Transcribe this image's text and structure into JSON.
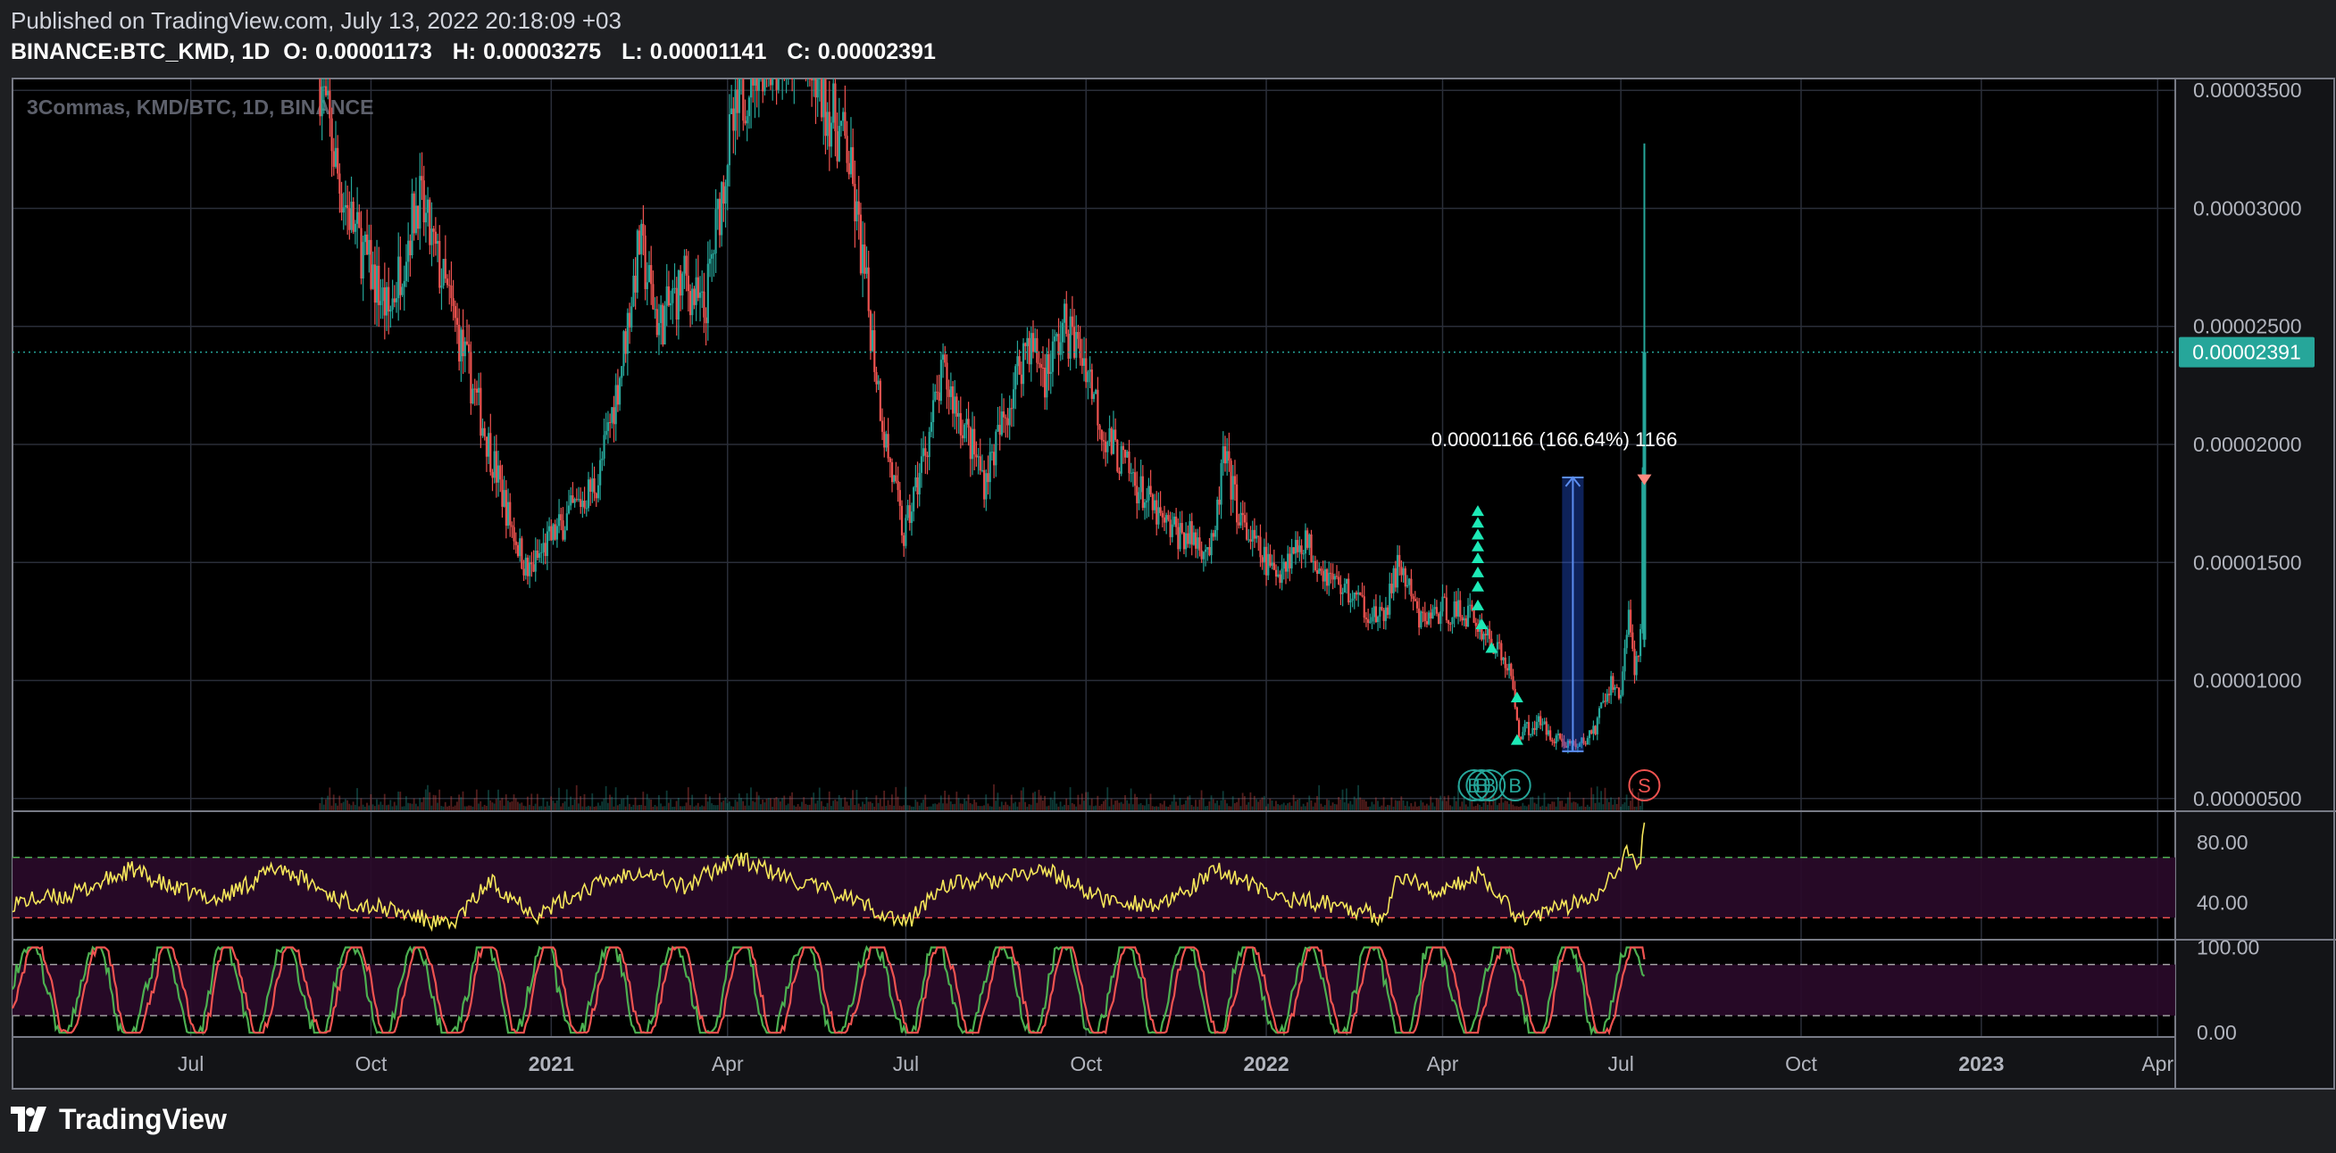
{
  "header": {
    "published": "Published on TradingView.com, July 13, 2022 20:18:09 +03",
    "symbol": "BINANCE:BTC_KMD, 1D",
    "o_label": "O:",
    "o": "0.00001173",
    "h_label": "H:",
    "h": "0.00003275",
    "l_label": "L:",
    "l": "0.00001141",
    "c_label": "C:",
    "c": "0.00002391"
  },
  "footer": {
    "brand": "TradingView"
  },
  "colors": {
    "background": "#000000",
    "up": "#26a69a",
    "down": "#ef5350",
    "grid": "#2a2e39",
    "rsi": "#f5e65a",
    "stoch_k": "#4caf50",
    "stoch_d": "#ef5350",
    "price_label": "#26a69a",
    "marker_up": "#1de9b6",
    "marker_down": "#ff8a80",
    "measure": "#2962ff"
  },
  "chart_data": {
    "type": "candlestick",
    "watermark": "3Commas, KMD/BTC, 1D, BINANCE",
    "y_axis": {
      "range": [
        4.5e-06,
        3.55e-05
      ],
      "ticks": [
        "0.00003500",
        "0.00003000",
        "0.00002500",
        "0.00002000",
        "0.00001500",
        "0.00001000",
        "0.00000500"
      ],
      "tick_values": [
        3.5e-05,
        3e-05,
        2.5e-05,
        2e-05,
        1.5e-05,
        1e-05,
        5e-06
      ]
    },
    "x_axis": {
      "ticks": [
        "Jul",
        "Oct",
        "2021",
        "Apr",
        "Jul",
        "Oct",
        "2022",
        "Apr",
        "Jul",
        "Oct",
        "2023",
        "Apr"
      ],
      "tick_dates": [
        "2020-07-01",
        "2020-10-01",
        "2021-01-01",
        "2021-04-01",
        "2021-07-01",
        "2021-10-01",
        "2022-01-01",
        "2022-04-01",
        "2022-07-01",
        "2022-10-01",
        "2023-01-01",
        "2023-04-01"
      ],
      "range": [
        "2020-04-01",
        "2023-04-10"
      ]
    },
    "last_price": {
      "value": 2.391e-05,
      "label": "0.00002391"
    },
    "close_series": [
      {
        "date": "2020-09-05",
        "value": 3.55e-05
      },
      {
        "date": "2020-09-15",
        "value": 3.1e-05
      },
      {
        "date": "2020-09-25",
        "value": 2.85e-05
      },
      {
        "date": "2020-10-10",
        "value": 2.55e-05
      },
      {
        "date": "2020-10-25",
        "value": 3.05e-05
      },
      {
        "date": "2020-11-10",
        "value": 2.6e-05
      },
      {
        "date": "2020-11-25",
        "value": 2.15e-05
      },
      {
        "date": "2020-12-10",
        "value": 1.7e-05
      },
      {
        "date": "2020-12-20",
        "value": 1.45e-05
      },
      {
        "date": "2020-12-30",
        "value": 1.58e-05
      },
      {
        "date": "2021-01-10",
        "value": 1.7e-05
      },
      {
        "date": "2021-01-25",
        "value": 1.85e-05
      },
      {
        "date": "2021-02-05",
        "value": 2.3e-05
      },
      {
        "date": "2021-02-15",
        "value": 2.85e-05
      },
      {
        "date": "2021-02-25",
        "value": 2.5e-05
      },
      {
        "date": "2021-03-10",
        "value": 2.7e-05
      },
      {
        "date": "2021-03-20",
        "value": 2.55e-05
      },
      {
        "date": "2021-04-01",
        "value": 3.25e-05
      },
      {
        "date": "2021-04-15",
        "value": 3.65e-05
      },
      {
        "date": "2021-05-10",
        "value": 3.65e-05
      },
      {
        "date": "2021-06-01",
        "value": 3.25e-05
      },
      {
        "date": "2021-06-10",
        "value": 2.7e-05
      },
      {
        "date": "2021-06-20",
        "value": 2.05e-05
      },
      {
        "date": "2021-06-30",
        "value": 1.6e-05
      },
      {
        "date": "2021-07-10",
        "value": 1.95e-05
      },
      {
        "date": "2021-07-20",
        "value": 2.3e-05
      },
      {
        "date": "2021-08-01",
        "value": 2.05e-05
      },
      {
        "date": "2021-08-10",
        "value": 1.85e-05
      },
      {
        "date": "2021-08-20",
        "value": 2.1e-05
      },
      {
        "date": "2021-09-01",
        "value": 2.45e-05
      },
      {
        "date": "2021-09-10",
        "value": 2.3e-05
      },
      {
        "date": "2021-09-20",
        "value": 2.5e-05
      },
      {
        "date": "2021-10-01",
        "value": 2.35e-05
      },
      {
        "date": "2021-10-10",
        "value": 2.05e-05
      },
      {
        "date": "2021-10-25",
        "value": 1.85e-05
      },
      {
        "date": "2021-11-10",
        "value": 1.65e-05
      },
      {
        "date": "2021-11-25",
        "value": 1.6e-05
      },
      {
        "date": "2021-12-05",
        "value": 1.55e-05
      },
      {
        "date": "2021-12-10",
        "value": 1.95e-05
      },
      {
        "date": "2021-12-20",
        "value": 1.65e-05
      },
      {
        "date": "2022-01-05",
        "value": 1.45e-05
      },
      {
        "date": "2022-01-20",
        "value": 1.6e-05
      },
      {
        "date": "2022-02-01",
        "value": 1.45e-05
      },
      {
        "date": "2022-02-15",
        "value": 1.35e-05
      },
      {
        "date": "2022-03-01",
        "value": 1.25e-05
      },
      {
        "date": "2022-03-10",
        "value": 1.5e-05
      },
      {
        "date": "2022-03-20",
        "value": 1.25e-05
      },
      {
        "date": "2022-04-01",
        "value": 1.3e-05
      },
      {
        "date": "2022-04-15",
        "value": 1.28e-05
      },
      {
        "date": "2022-04-25",
        "value": 1.18e-05
      },
      {
        "date": "2022-05-05",
        "value": 1.05e-05
      },
      {
        "date": "2022-05-10",
        "value": 7.8e-06
      },
      {
        "date": "2022-05-20",
        "value": 8.2e-06
      },
      {
        "date": "2022-06-01",
        "value": 7.4e-06
      },
      {
        "date": "2022-06-10",
        "value": 7.2e-06
      },
      {
        "date": "2022-06-18",
        "value": 8e-06
      },
      {
        "date": "2022-06-25",
        "value": 9.8e-06
      },
      {
        "date": "2022-07-01",
        "value": 9.5e-06
      },
      {
        "date": "2022-07-05",
        "value": 1.3e-05
      },
      {
        "date": "2022-07-08",
        "value": 1.02e-05
      },
      {
        "date": "2022-07-11",
        "value": 1.17e-05
      },
      {
        "date": "2022-07-13",
        "value": 2.391e-05
      }
    ],
    "last_bar": {
      "date": "2022-07-13",
      "open": 1.173e-05,
      "high": 3.275e-05,
      "low": 1.141e-05,
      "close": 2.391e-05
    },
    "measure": {
      "label": "0.00001166 (166.64%) 1166",
      "from_date": "2022-06-01",
      "to_date": "2022-06-12",
      "from_value": 7e-06,
      "to_value": 1.86e-05
    },
    "buy_markers": [
      {
        "date": "2022-04-19",
        "value": 1.72e-05
      },
      {
        "date": "2022-04-19",
        "value": 1.67e-05
      },
      {
        "date": "2022-04-19",
        "value": 1.62e-05
      },
      {
        "date": "2022-04-19",
        "value": 1.57e-05
      },
      {
        "date": "2022-04-19",
        "value": 1.52e-05
      },
      {
        "date": "2022-04-19",
        "value": 1.46e-05
      },
      {
        "date": "2022-04-19",
        "value": 1.4e-05
      },
      {
        "date": "2022-04-19",
        "value": 1.32e-05
      },
      {
        "date": "2022-04-21",
        "value": 1.24e-05
      },
      {
        "date": "2022-04-26",
        "value": 1.14e-05
      },
      {
        "date": "2022-05-09",
        "value": 9.3e-06
      },
      {
        "date": "2022-05-09",
        "value": 7.5e-06
      }
    ],
    "sell_markers": [
      {
        "date": "2022-07-13",
        "value": 1.85e-05
      }
    ],
    "deal_circles": [
      {
        "date": "2022-04-17",
        "label": "B",
        "kind": "buy"
      },
      {
        "date": "2022-04-21",
        "label": "B",
        "kind": "buy"
      },
      {
        "date": "2022-04-25",
        "label": "B",
        "kind": "buy"
      },
      {
        "date": "2022-05-08",
        "label": "B",
        "kind": "buy"
      },
      {
        "date": "2022-07-13",
        "label": "S",
        "kind": "sell"
      }
    ],
    "rsi": {
      "ticks": [
        "80.00",
        "40.00"
      ],
      "tick_values": [
        80,
        40
      ],
      "range": [
        16,
        100
      ],
      "upper_band": 70,
      "lower_band": 30,
      "series": [
        {
          "date": "2020-04-01",
          "value": 40
        },
        {
          "date": "2020-05-01",
          "value": 45
        },
        {
          "date": "2020-06-01",
          "value": 62
        },
        {
          "date": "2020-06-20",
          "value": 50
        },
        {
          "date": "2020-07-15",
          "value": 42
        },
        {
          "date": "2020-08-15",
          "value": 64
        },
        {
          "date": "2020-09-15",
          "value": 42
        },
        {
          "date": "2020-10-15",
          "value": 34
        },
        {
          "date": "2020-11-10",
          "value": 24
        },
        {
          "date": "2020-12-01",
          "value": 54
        },
        {
          "date": "2020-12-25",
          "value": 32
        },
        {
          "date": "2021-01-20",
          "value": 50
        },
        {
          "date": "2021-02-15",
          "value": 62
        },
        {
          "date": "2021-03-10",
          "value": 50
        },
        {
          "date": "2021-04-05",
          "value": 70
        },
        {
          "date": "2021-05-01",
          "value": 56
        },
        {
          "date": "2021-06-01",
          "value": 44
        },
        {
          "date": "2021-07-01",
          "value": 26
        },
        {
          "date": "2021-07-20",
          "value": 52
        },
        {
          "date": "2021-08-20",
          "value": 55
        },
        {
          "date": "2021-09-10",
          "value": 62
        },
        {
          "date": "2021-10-10",
          "value": 42
        },
        {
          "date": "2021-11-10",
          "value": 38
        },
        {
          "date": "2021-12-08",
          "value": 62
        },
        {
          "date": "2022-01-05",
          "value": 44
        },
        {
          "date": "2022-02-10",
          "value": 38
        },
        {
          "date": "2022-03-01",
          "value": 30
        },
        {
          "date": "2022-03-10",
          "value": 58
        },
        {
          "date": "2022-04-01",
          "value": 46
        },
        {
          "date": "2022-04-20",
          "value": 60
        },
        {
          "date": "2022-05-10",
          "value": 30
        },
        {
          "date": "2022-06-01",
          "value": 36
        },
        {
          "date": "2022-06-20",
          "value": 48
        },
        {
          "date": "2022-07-05",
          "value": 74
        },
        {
          "date": "2022-07-10",
          "value": 60
        },
        {
          "date": "2022-07-13",
          "value": 90
        }
      ]
    },
    "stoch_rsi": {
      "ticks": [
        "100.00",
        "0.00"
      ],
      "tick_values": [
        100,
        0
      ],
      "range": [
        -5,
        108
      ],
      "upper_band": 80,
      "lower_band": 20,
      "cycle_days": 34
    },
    "volume": {
      "note": "small bars along the bottom of the price pane"
    }
  }
}
